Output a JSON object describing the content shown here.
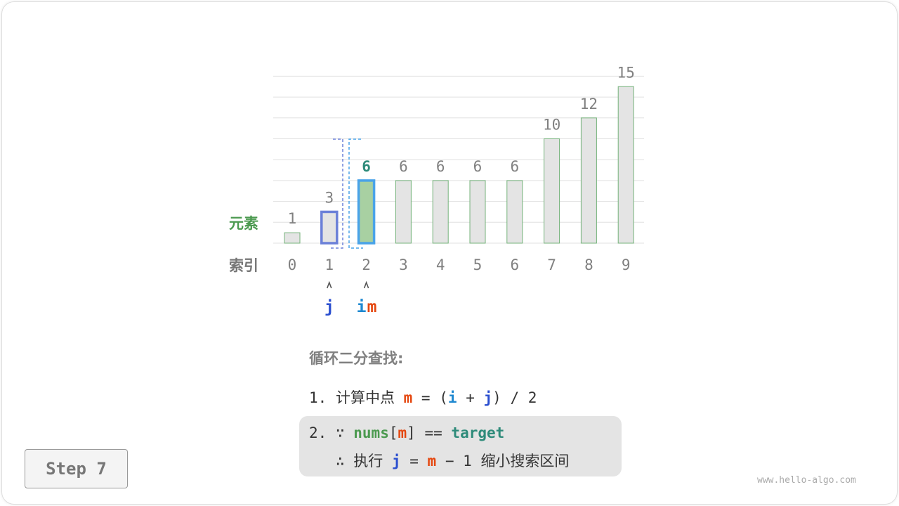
{
  "labels": {
    "element": "元素",
    "index": "索引"
  },
  "nums": [
    1,
    3,
    6,
    6,
    6,
    6,
    6,
    10,
    12,
    15
  ],
  "indices": [
    "0",
    "1",
    "2",
    "3",
    "4",
    "5",
    "6",
    "7",
    "8",
    "9"
  ],
  "pointers": {
    "j": "j",
    "i": "i",
    "m": "m",
    "j_index": 1,
    "im_index": 2
  },
  "highlight": {
    "j_bar": 1,
    "m_bar": 2
  },
  "colors": {
    "green": "#4c9a50",
    "teal": "#2e8b7a",
    "blue": "#2b4fcf",
    "lightblue": "#1e88d0",
    "orange": "#e5470f",
    "j_outline": "#6b80d8",
    "m_outline": "#4aa3e8"
  },
  "steps": {
    "title": "循环二分查找:",
    "line1": {
      "num": "1.",
      "text": "计算中点",
      "m": "m",
      "eq": "=",
      "lp": "(",
      "i": "i",
      "plus": "+",
      "j": "j",
      "rp": ")",
      "div": "/ 2"
    },
    "line2": {
      "num": "2.",
      "because": "∵",
      "nums": "nums",
      "lb": "[",
      "m": "m",
      "rb": "]",
      "eqeq": "==",
      "target": "target"
    },
    "line3": {
      "therefore": "∴",
      "exec": "执行",
      "j": "j",
      "eq": "=",
      "m": "m",
      "minus": "− 1",
      "desc": "缩小搜索区间"
    }
  },
  "step_button": "Step 7",
  "watermark": "www.hello-algo.com"
}
